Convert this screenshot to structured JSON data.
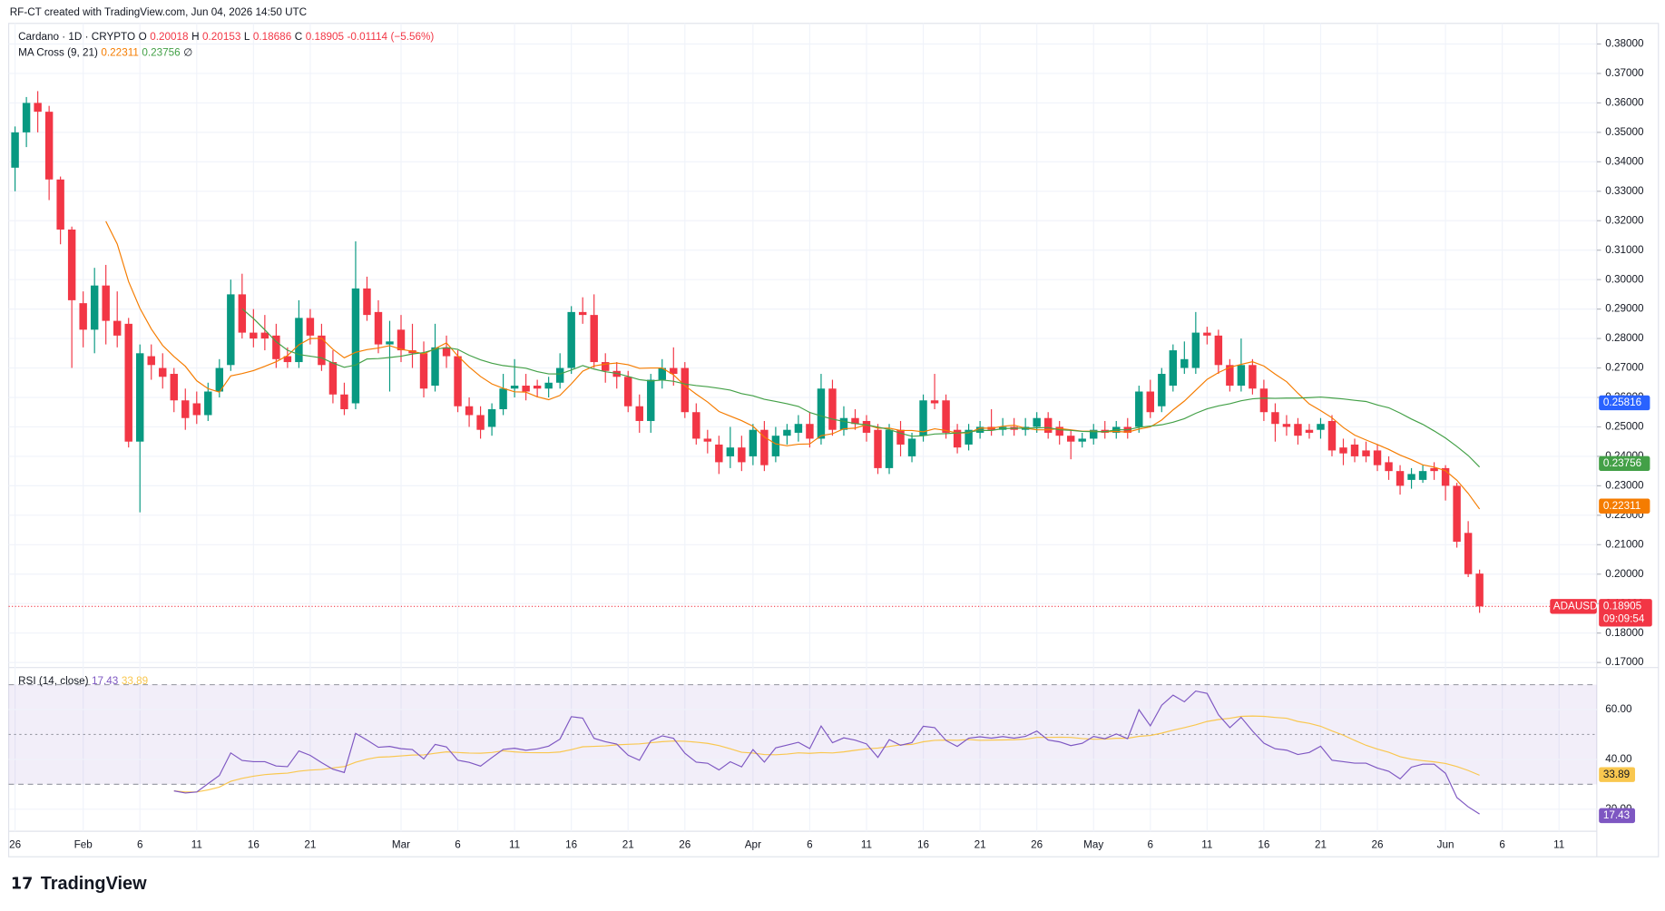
{
  "header": "RF-CT created with TradingView.com, Jun 04, 2026 14:50 UTC",
  "brand": "TradingView",
  "chart_data": {
    "type": "candlestick",
    "title": "Cardano · 1D · CRYPTO",
    "ohlc_readout": [
      {
        "key": "O",
        "value": 0.20018
      },
      {
        "key": "H",
        "value": 0.20153
      },
      {
        "key": "L",
        "value": 0.18686
      },
      {
        "key": "C",
        "value": 0.18905
      }
    ],
    "change": -0.01114,
    "change_pct": "(−5.56%)",
    "up_color": "#089981",
    "down_color": "#f23645",
    "ohlc": [
      [
        0.338,
        0.352,
        0.33,
        0.35
      ],
      [
        0.35,
        0.362,
        0.345,
        0.36
      ],
      [
        0.36,
        0.364,
        0.35,
        0.357
      ],
      [
        0.357,
        0.359,
        0.327,
        0.334
      ],
      [
        0.334,
        0.335,
        0.312,
        0.317
      ],
      [
        0.317,
        0.318,
        0.27,
        0.293
      ],
      [
        0.292,
        0.296,
        0.277,
        0.283
      ],
      [
        0.283,
        0.304,
        0.275,
        0.298
      ],
      [
        0.298,
        0.305,
        0.278,
        0.286
      ],
      [
        0.286,
        0.296,
        0.277,
        0.281
      ],
      [
        0.285,
        0.287,
        0.243,
        0.245
      ],
      [
        0.245,
        0.278,
        0.221,
        0.275
      ],
      [
        0.274,
        0.278,
        0.266,
        0.271
      ],
      [
        0.27,
        0.275,
        0.263,
        0.267
      ],
      [
        0.268,
        0.27,
        0.255,
        0.259
      ],
      [
        0.259,
        0.263,
        0.249,
        0.253
      ],
      [
        0.258,
        0.262,
        0.251,
        0.254
      ],
      [
        0.254,
        0.265,
        0.252,
        0.262
      ],
      [
        0.262,
        0.273,
        0.26,
        0.27
      ],
      [
        0.271,
        0.3,
        0.269,
        0.295
      ],
      [
        0.295,
        0.302,
        0.28,
        0.282
      ],
      [
        0.282,
        0.29,
        0.277,
        0.28
      ],
      [
        0.282,
        0.288,
        0.276,
        0.28
      ],
      [
        0.281,
        0.285,
        0.27,
        0.273
      ],
      [
        0.274,
        0.277,
        0.27,
        0.272
      ],
      [
        0.272,
        0.293,
        0.27,
        0.287
      ],
      [
        0.287,
        0.29,
        0.278,
        0.281
      ],
      [
        0.281,
        0.285,
        0.269,
        0.271
      ],
      [
        0.272,
        0.276,
        0.258,
        0.261
      ],
      [
        0.261,
        0.265,
        0.254,
        0.256
      ],
      [
        0.258,
        0.313,
        0.256,
        0.297
      ],
      [
        0.297,
        0.301,
        0.286,
        0.288
      ],
      [
        0.289,
        0.293,
        0.275,
        0.278
      ],
      [
        0.278,
        0.286,
        0.262,
        0.279
      ],
      [
        0.283,
        0.288,
        0.272,
        0.276
      ],
      [
        0.276,
        0.285,
        0.27,
        0.275
      ],
      [
        0.275,
        0.279,
        0.26,
        0.263
      ],
      [
        0.264,
        0.285,
        0.262,
        0.277
      ],
      [
        0.277,
        0.281,
        0.27,
        0.274
      ],
      [
        0.274,
        0.276,
        0.255,
        0.257
      ],
      [
        0.257,
        0.26,
        0.25,
        0.254
      ],
      [
        0.254,
        0.257,
        0.246,
        0.249
      ],
      [
        0.25,
        0.258,
        0.247,
        0.256
      ],
      [
        0.256,
        0.268,
        0.254,
        0.263
      ],
      [
        0.263,
        0.273,
        0.26,
        0.264
      ],
      [
        0.264,
        0.268,
        0.259,
        0.262
      ],
      [
        0.264,
        0.266,
        0.26,
        0.263
      ],
      [
        0.263,
        0.267,
        0.26,
        0.265
      ],
      [
        0.265,
        0.275,
        0.263,
        0.27
      ],
      [
        0.27,
        0.291,
        0.268,
        0.289
      ],
      [
        0.289,
        0.294,
        0.285,
        0.288
      ],
      [
        0.288,
        0.295,
        0.27,
        0.272
      ],
      [
        0.272,
        0.275,
        0.265,
        0.269
      ],
      [
        0.269,
        0.272,
        0.263,
        0.267
      ],
      [
        0.267,
        0.269,
        0.255,
        0.257
      ],
      [
        0.257,
        0.261,
        0.248,
        0.252
      ],
      [
        0.252,
        0.268,
        0.248,
        0.266
      ],
      [
        0.266,
        0.273,
        0.263,
        0.27
      ],
      [
        0.27,
        0.277,
        0.264,
        0.268
      ],
      [
        0.27,
        0.272,
        0.253,
        0.255
      ],
      [
        0.255,
        0.258,
        0.244,
        0.246
      ],
      [
        0.246,
        0.249,
        0.241,
        0.245
      ],
      [
        0.244,
        0.247,
        0.234,
        0.238
      ],
      [
        0.24,
        0.25,
        0.236,
        0.243
      ],
      [
        0.243,
        0.247,
        0.235,
        0.238
      ],
      [
        0.24,
        0.251,
        0.237,
        0.249
      ],
      [
        0.249,
        0.252,
        0.235,
        0.237
      ],
      [
        0.24,
        0.25,
        0.238,
        0.247
      ],
      [
        0.247,
        0.251,
        0.244,
        0.249
      ],
      [
        0.248,
        0.254,
        0.245,
        0.251
      ],
      [
        0.251,
        0.255,
        0.243,
        0.246
      ],
      [
        0.246,
        0.268,
        0.244,
        0.263
      ],
      [
        0.263,
        0.266,
        0.247,
        0.249
      ],
      [
        0.249,
        0.257,
        0.247,
        0.253
      ],
      [
        0.253,
        0.256,
        0.249,
        0.251
      ],
      [
        0.252,
        0.254,
        0.245,
        0.248
      ],
      [
        0.249,
        0.251,
        0.234,
        0.236
      ],
      [
        0.236,
        0.251,
        0.234,
        0.249
      ],
      [
        0.249,
        0.252,
        0.24,
        0.244
      ],
      [
        0.24,
        0.248,
        0.238,
        0.246
      ],
      [
        0.247,
        0.261,
        0.245,
        0.259
      ],
      [
        0.259,
        0.268,
        0.256,
        0.258
      ],
      [
        0.259,
        0.261,
        0.246,
        0.248
      ],
      [
        0.249,
        0.251,
        0.241,
        0.243
      ],
      [
        0.244,
        0.251,
        0.242,
        0.249
      ],
      [
        0.248,
        0.252,
        0.246,
        0.25
      ],
      [
        0.25,
        0.256,
        0.247,
        0.249
      ],
      [
        0.249,
        0.253,
        0.247,
        0.25
      ],
      [
        0.25,
        0.253,
        0.247,
        0.249
      ],
      [
        0.249,
        0.253,
        0.247,
        0.25
      ],
      [
        0.25,
        0.255,
        0.248,
        0.253
      ],
      [
        0.253,
        0.255,
        0.246,
        0.248
      ],
      [
        0.25,
        0.252,
        0.244,
        0.247
      ],
      [
        0.247,
        0.249,
        0.239,
        0.245
      ],
      [
        0.245,
        0.248,
        0.243,
        0.246
      ],
      [
        0.246,
        0.251,
        0.244,
        0.249
      ],
      [
        0.249,
        0.252,
        0.246,
        0.248
      ],
      [
        0.248,
        0.252,
        0.246,
        0.25
      ],
      [
        0.25,
        0.253,
        0.246,
        0.248
      ],
      [
        0.25,
        0.264,
        0.248,
        0.262
      ],
      [
        0.262,
        0.266,
        0.253,
        0.255
      ],
      [
        0.257,
        0.27,
        0.255,
        0.268
      ],
      [
        0.264,
        0.278,
        0.262,
        0.276
      ],
      [
        0.27,
        0.279,
        0.268,
        0.273
      ],
      [
        0.27,
        0.289,
        0.268,
        0.282
      ],
      [
        0.282,
        0.284,
        0.278,
        0.281
      ],
      [
        0.281,
        0.283,
        0.268,
        0.271
      ],
      [
        0.271,
        0.273,
        0.262,
        0.264
      ],
      [
        0.264,
        0.28,
        0.262,
        0.271
      ],
      [
        0.271,
        0.273,
        0.261,
        0.263
      ],
      [
        0.263,
        0.266,
        0.252,
        0.255
      ],
      [
        0.255,
        0.258,
        0.245,
        0.251
      ],
      [
        0.251,
        0.254,
        0.247,
        0.25
      ],
      [
        0.251,
        0.253,
        0.244,
        0.247
      ],
      [
        0.249,
        0.251,
        0.246,
        0.248
      ],
      [
        0.249,
        0.253,
        0.246,
        0.251
      ],
      [
        0.252,
        0.254,
        0.24,
        0.242
      ],
      [
        0.243,
        0.246,
        0.237,
        0.241
      ],
      [
        0.244,
        0.246,
        0.238,
        0.24
      ],
      [
        0.242,
        0.245,
        0.238,
        0.24
      ],
      [
        0.242,
        0.244,
        0.235,
        0.237
      ],
      [
        0.238,
        0.24,
        0.232,
        0.235
      ],
      [
        0.235,
        0.237,
        0.227,
        0.23
      ],
      [
        0.232,
        0.236,
        0.229,
        0.234
      ],
      [
        0.232,
        0.237,
        0.231,
        0.235
      ],
      [
        0.236,
        0.238,
        0.232,
        0.235
      ],
      [
        0.236,
        0.237,
        0.225,
        0.23
      ],
      [
        0.23,
        0.231,
        0.209,
        0.211
      ],
      [
        0.214,
        0.218,
        0.199,
        0.2
      ],
      [
        0.20018,
        0.20153,
        0.18686,
        0.18905
      ]
    ],
    "ylim": [
      0.169,
      0.387
    ],
    "yticks": [
      {
        "value": 0.17,
        "label": "0.17000"
      },
      {
        "value": 0.18,
        "label": "0.18000"
      },
      {
        "value": 0.19,
        "label": "0.19000"
      },
      {
        "value": 0.2,
        "label": "0.20000"
      },
      {
        "value": 0.21,
        "label": "0.21000"
      },
      {
        "value": 0.22,
        "label": "0.22000"
      },
      {
        "value": 0.23,
        "label": "0.23000"
      },
      {
        "value": 0.24,
        "label": "0.24000"
      },
      {
        "value": 0.25,
        "label": "0.25000"
      },
      {
        "value": 0.26,
        "label": "0.26000"
      },
      {
        "value": 0.27,
        "label": "0.27000"
      },
      {
        "value": 0.28,
        "label": "0.28000"
      },
      {
        "value": 0.29,
        "label": "0.29000"
      },
      {
        "value": 0.3,
        "label": "0.30000"
      },
      {
        "value": 0.31,
        "label": "0.31000"
      },
      {
        "value": 0.32,
        "label": "0.32000"
      },
      {
        "value": 0.33,
        "label": "0.33000"
      },
      {
        "value": 0.34,
        "label": "0.34000"
      },
      {
        "value": 0.35,
        "label": "0.35000"
      },
      {
        "value": 0.36,
        "label": "0.36000"
      },
      {
        "value": 0.37,
        "label": "0.37000"
      },
      {
        "value": 0.38,
        "label": "0.38000"
      }
    ],
    "xticks": [
      {
        "value": 0,
        "label": "26"
      },
      {
        "value": 6,
        "label": "Feb"
      },
      {
        "value": 11,
        "label": "6"
      },
      {
        "value": 16,
        "label": "11"
      },
      {
        "value": 21,
        "label": "16"
      },
      {
        "value": 26,
        "label": "21"
      },
      {
        "value": 34,
        "label": "Mar"
      },
      {
        "value": 39,
        "label": "6"
      },
      {
        "value": 44,
        "label": "11"
      },
      {
        "value": 49,
        "label": "16"
      },
      {
        "value": 54,
        "label": "21"
      },
      {
        "value": 59,
        "label": "26"
      },
      {
        "value": 65,
        "label": "Apr"
      },
      {
        "value": 70,
        "label": "6"
      },
      {
        "value": 75,
        "label": "11"
      },
      {
        "value": 80,
        "label": "16"
      },
      {
        "value": 85,
        "label": "21"
      },
      {
        "value": 90,
        "label": "26"
      },
      {
        "value": 95,
        "label": "May"
      },
      {
        "value": 100,
        "label": "6"
      },
      {
        "value": 105,
        "label": "11"
      },
      {
        "value": 110,
        "label": "16"
      },
      {
        "value": 115,
        "label": "21"
      },
      {
        "value": 120,
        "label": "26"
      },
      {
        "value": 126,
        "label": "Jun"
      },
      {
        "value": 131,
        "label": "6"
      },
      {
        "value": 136,
        "label": "11"
      }
    ],
    "grid": true,
    "last_price": {
      "name": "ADAUSD",
      "value": 0.18905,
      "countdown": "09:09:54",
      "color": "#f23645"
    },
    "price_labels": [
      {
        "value": 0.25816,
        "color": "#2962ff"
      }
    ],
    "indicators": {
      "ma": {
        "title": "MA Cross (9, 21)",
        "periods": [
          9,
          21
        ],
        "values": [
          0.22311,
          0.23756
        ],
        "colors": [
          "#f57c00",
          "#43a047"
        ],
        "extra": "∅"
      },
      "rsi": {
        "title": "RSI (14, close)",
        "period": 14,
        "values": [
          17.43,
          33.89
        ],
        "colors": [
          "#7e57c2",
          "#f9c74f"
        ],
        "ylim": [
          12,
          76
        ],
        "yticks": [
          {
            "value": 20,
            "label": "20.00"
          },
          {
            "value": 40,
            "label": "40.00"
          },
          {
            "value": 60,
            "label": "60.00"
          }
        ],
        "bands": [
          30,
          50,
          70
        ]
      }
    }
  }
}
